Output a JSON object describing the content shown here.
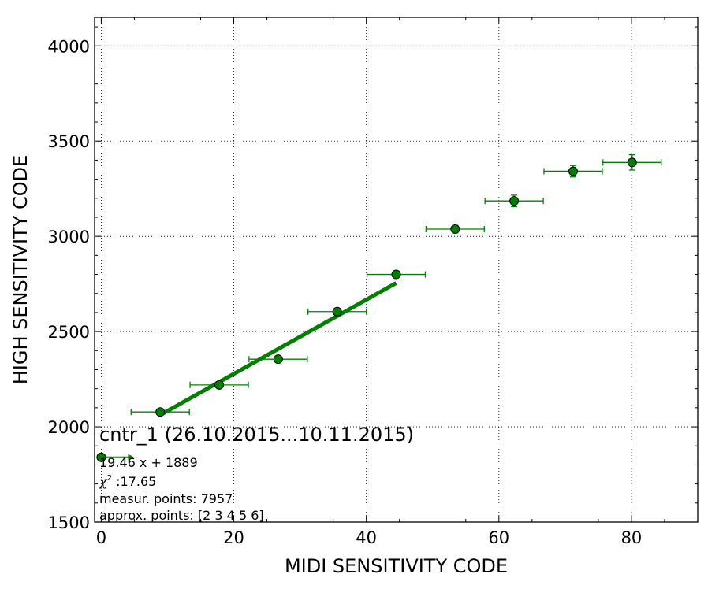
{
  "chart_data": {
    "type": "scatter",
    "xlabel": "MIDI SENSITIVITY CODE",
    "ylabel": "HIGH SENSITIVITY CODE",
    "xlim": [
      -1,
      90
    ],
    "ylim": [
      1500,
      4150
    ],
    "x_ticks": [
      0,
      20,
      40,
      60,
      80
    ],
    "y_ticks": [
      1500,
      2000,
      2500,
      3000,
      3500,
      4000
    ],
    "grid": true,
    "series": [
      {
        "marker": "circle",
        "color": "#008000",
        "points": [
          {
            "x": 0,
            "y": 1840,
            "xerr": 0,
            "yerr": 0
          },
          {
            "x": 8.9,
            "y": 2078,
            "xerr": 4.4,
            "yerr": 10
          },
          {
            "x": 17.8,
            "y": 2220,
            "xerr": 4.4,
            "yerr": 12
          },
          {
            "x": 26.7,
            "y": 2355,
            "xerr": 4.4,
            "yerr": 12
          },
          {
            "x": 35.6,
            "y": 2605,
            "xerr": 4.4,
            "yerr": 15
          },
          {
            "x": 44.5,
            "y": 2800,
            "xerr": 4.4,
            "yerr": 15
          },
          {
            "x": 53.4,
            "y": 3038,
            "xerr": 4.4,
            "yerr": 20
          },
          {
            "x": 62.3,
            "y": 3186,
            "xerr": 4.4,
            "yerr": 30
          },
          {
            "x": 71.2,
            "y": 3342,
            "xerr": 4.4,
            "yerr": 30
          },
          {
            "x": 80.1,
            "y": 3388,
            "xerr": 4.4,
            "yerr": 40
          }
        ]
      }
    ],
    "fit_line": {
      "slope": 19.46,
      "intercept": 1889,
      "x_start": 8.9,
      "x_end": 44.5,
      "color": "#008000"
    },
    "legend_arrow": {
      "x_start": 0,
      "x_end": 5,
      "y": 1840,
      "color": "#008000"
    },
    "annotation": {
      "title": "cntr_1 (26.10.2015...10.11.2015)",
      "fit": "19.46 x + 1889",
      "chi_symbol": "χ",
      "chi_sup": "2",
      "chi_value": " :17.65",
      "measur_points": "measur. points: 7957",
      "approx_points": "approx. points: [2 3 4 5 6]"
    }
  }
}
